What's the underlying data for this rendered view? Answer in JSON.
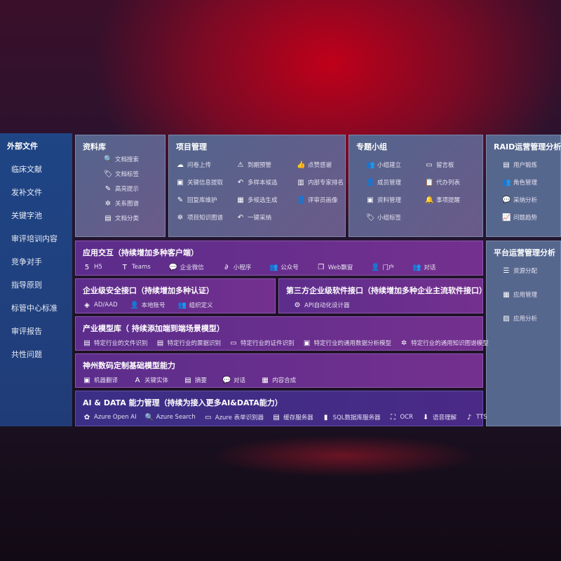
{
  "sidebar": {
    "title": "外部文件",
    "items": [
      "临床文献",
      "发补文件",
      "关键字池",
      "审评培训内容",
      "竞争对手",
      "指导原则",
      "标管中心标准",
      "审评报告",
      "共性问题"
    ]
  },
  "library": {
    "title": "资料库",
    "items": [
      {
        "icon": "document-search-icon",
        "g": "🔍",
        "label": "文档搜索"
      },
      {
        "icon": "tag-icon",
        "g": "🏷",
        "label": "文档标签"
      },
      {
        "icon": "pen-icon",
        "g": "✎",
        "label": "高亮提示"
      },
      {
        "icon": "graph-icon",
        "g": "✲",
        "label": "关系图谱"
      },
      {
        "icon": "document-icon",
        "g": "▤",
        "label": "文档分类"
      }
    ]
  },
  "project": {
    "title": "项目管理",
    "items": [
      {
        "icon": "cloud-upload-icon",
        "g": "☁",
        "label": "问卷上传"
      },
      {
        "icon": "alarm-icon",
        "g": "⚠",
        "label": "到期预警"
      },
      {
        "icon": "thumbs-up-icon",
        "g": "👍",
        "label": "点赞感谢"
      },
      {
        "icon": "window-icon",
        "g": "▣",
        "label": "关键信息提取"
      },
      {
        "icon": "reply-icon",
        "g": "↶",
        "label": "多样本候选"
      },
      {
        "icon": "ranking-icon",
        "g": "▥",
        "label": "内部专家排名"
      },
      {
        "icon": "edit-icon",
        "g": "✎",
        "label": "回复库维护"
      },
      {
        "icon": "puzzle-icon",
        "g": "▦",
        "label": "多候选生成"
      },
      {
        "icon": "user-icon",
        "g": "👤",
        "label": "评审员画像"
      },
      {
        "icon": "graph-icon",
        "g": "✲",
        "label": "项目知识图谱"
      },
      {
        "icon": "reply-icon",
        "g": "↶",
        "label": "一键采纳"
      }
    ]
  },
  "group": {
    "title": "专题小组",
    "items": [
      {
        "icon": "users-icon",
        "g": "👥",
        "label": "小组建立"
      },
      {
        "icon": "bbs-icon",
        "g": "▭",
        "label": "留言板"
      },
      {
        "icon": "user-add-icon",
        "g": "👤",
        "label": "成员管理"
      },
      {
        "icon": "clipboard-icon",
        "g": "📋",
        "label": "代办列表"
      },
      {
        "icon": "folder-icon",
        "g": "▣",
        "label": "资料管理"
      },
      {
        "icon": "bell-icon",
        "g": "🔔",
        "label": "事项提醒"
      },
      {
        "icon": "tag-icon",
        "g": "🏷",
        "label": "小组标签"
      }
    ]
  },
  "raid": {
    "title": "RAID运营管理分析",
    "items": [
      {
        "icon": "id-card-icon",
        "g": "▤",
        "label": "用户锻炼"
      },
      {
        "icon": "users-icon",
        "g": "👥",
        "label": "角色管理"
      },
      {
        "icon": "qa-icon",
        "g": "💬",
        "label": "采纳分析"
      },
      {
        "icon": "trend-icon",
        "g": "📈",
        "label": "问题趋势"
      }
    ]
  },
  "platform": {
    "title": "平台运营管理分析",
    "items": [
      {
        "icon": "list-icon",
        "g": "☰",
        "label": "资源分配"
      },
      {
        "icon": "apps-icon",
        "g": "▦",
        "label": "应用管理"
      },
      {
        "icon": "chart-icon",
        "g": "▨",
        "label": "应用分析"
      }
    ]
  },
  "interaction": {
    "title": "应用交互（持续增加多种客户端）",
    "items": [
      {
        "icon": "html5-icon",
        "g": "5",
        "label": "H5"
      },
      {
        "icon": "teams-icon",
        "g": "T",
        "label": "Teams"
      },
      {
        "icon": "wechat-icon",
        "g": "💬",
        "label": "企业微信"
      },
      {
        "icon": "mini-program-icon",
        "g": "∂",
        "label": "小程序"
      },
      {
        "icon": "users-icon",
        "g": "👥",
        "label": "公众号"
      },
      {
        "icon": "window-icon",
        "g": "❐",
        "label": "Web飘窗"
      },
      {
        "icon": "portal-icon",
        "g": "👤",
        "label": "门户"
      },
      {
        "icon": "chat-users-icon",
        "g": "👥",
        "label": "对话"
      }
    ]
  },
  "security": {
    "title": "企业级安全接口（持续增加多种认证）",
    "items": [
      {
        "icon": "ad-icon",
        "g": "◈",
        "label": "AD/AAD"
      },
      {
        "icon": "account-icon",
        "g": "👤",
        "label": "本地账号"
      },
      {
        "icon": "org-icon",
        "g": "👥",
        "label": "组织定义"
      }
    ]
  },
  "thirdparty": {
    "title": "第三方企业级软件接口（持续增加多种企业主流软件接口）",
    "items": [
      {
        "icon": "gear-icon",
        "g": "⚙",
        "label": "API自动化设计器"
      }
    ]
  },
  "industry": {
    "title": "产业模型库（ 持续添加端到端场景模型）",
    "items": [
      {
        "icon": "file-icon",
        "g": "▤",
        "label": "特定行业的文件识别"
      },
      {
        "icon": "receipt-icon",
        "g": "▤",
        "label": "特定行业的票据识别"
      },
      {
        "icon": "id-card-icon",
        "g": "▭",
        "label": "特定行业的证件识别"
      },
      {
        "icon": "image-icon",
        "g": "▣",
        "label": "特定行业的通用数据分析模型"
      },
      {
        "icon": "graph-icon",
        "g": "✲",
        "label": "特定行业的通用知识图谱模型"
      }
    ]
  },
  "foundation": {
    "title": "神州数码定制基础模型能力",
    "items": [
      {
        "icon": "translate-icon",
        "g": "▣",
        "label": "机器翻译"
      },
      {
        "icon": "entity-icon",
        "g": "A",
        "label": "关键实体"
      },
      {
        "icon": "summary-icon",
        "g": "▤",
        "label": "摘要"
      },
      {
        "icon": "chat-icon",
        "g": "💬",
        "label": "对话"
      },
      {
        "icon": "puzzle-icon",
        "g": "▦",
        "label": "内容合成"
      }
    ]
  },
  "aidata": {
    "title": "AI & DATA 能力管理（持续为接入更多AI&DATA能力）",
    "items": [
      {
        "icon": "openai-icon",
        "g": "✿",
        "label": "Azure Open AI"
      },
      {
        "icon": "search-icon",
        "g": "🔍",
        "label": "Azure Search"
      },
      {
        "icon": "form-icon",
        "g": "▭",
        "label": "Azure 表单识别器"
      },
      {
        "icon": "cache-icon",
        "g": "▤",
        "label": "缓存服务器"
      },
      {
        "icon": "database-icon",
        "g": "▮",
        "label": "SQL数据库服务器"
      },
      {
        "icon": "ocr-icon",
        "g": "⛶",
        "label": "OCR"
      },
      {
        "icon": "voice-icon",
        "g": "⬇",
        "label": "语音理解"
      },
      {
        "icon": "tts-icon",
        "g": "♪",
        "label": "TTS"
      }
    ]
  }
}
